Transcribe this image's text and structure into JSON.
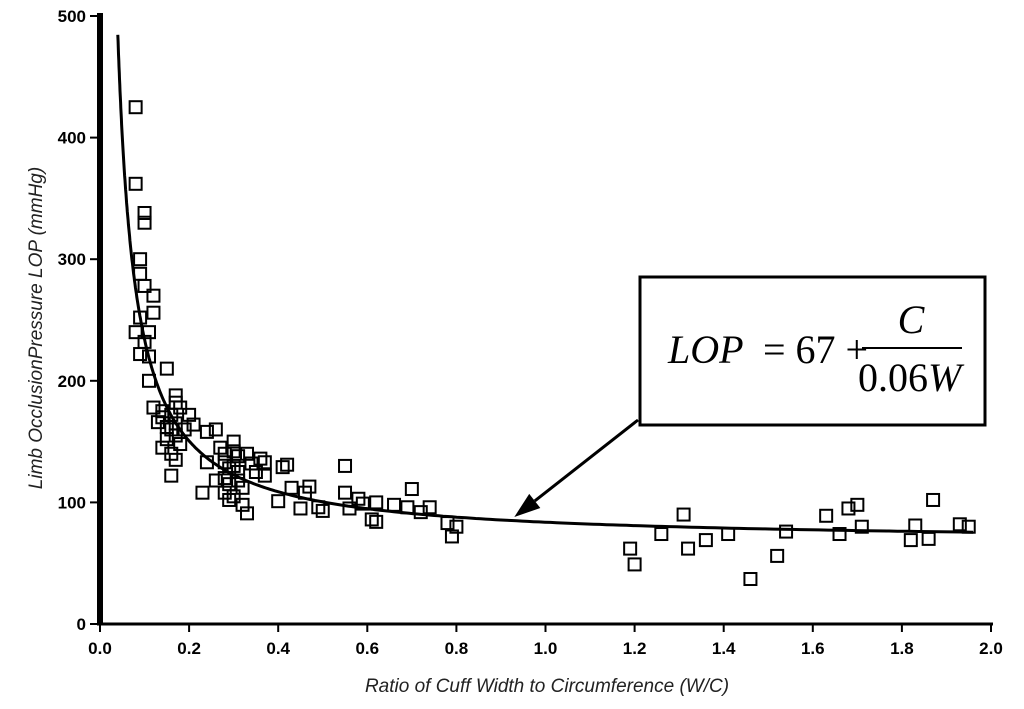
{
  "chart_data": {
    "type": "scatter",
    "title": "",
    "xlabel": "Ratio of Cuff Width to Circumference (W/C)",
    "ylabel": "Limb OcclusionPressure LOP (mmHg)",
    "xlim": [
      0.0,
      2.0
    ],
    "ylim": [
      0,
      500
    ],
    "x_ticks": [
      "0.0",
      "0.2",
      "0.4",
      "0.6",
      "0.8",
      "1.0",
      "1.2",
      "1.4",
      "1.6",
      "1.8",
      "2.0"
    ],
    "y_ticks": [
      "0",
      "100",
      "200",
      "300",
      "400",
      "500"
    ],
    "grid": false,
    "marker": "open-square",
    "points": [
      [
        0.08,
        425
      ],
      [
        0.08,
        362
      ],
      [
        0.1,
        338
      ],
      [
        0.1,
        330
      ],
      [
        0.09,
        300
      ],
      [
        0.09,
        288
      ],
      [
        0.1,
        278
      ],
      [
        0.12,
        270
      ],
      [
        0.12,
        256
      ],
      [
        0.09,
        252
      ],
      [
        0.08,
        240
      ],
      [
        0.11,
        240
      ],
      [
        0.1,
        232
      ],
      [
        0.09,
        222
      ],
      [
        0.11,
        220
      ],
      [
        0.11,
        200
      ],
      [
        0.15,
        210
      ],
      [
        0.12,
        178
      ],
      [
        0.14,
        175
      ],
      [
        0.14,
        170
      ],
      [
        0.13,
        166
      ],
      [
        0.15,
        162
      ],
      [
        0.16,
        160
      ],
      [
        0.15,
        152
      ],
      [
        0.14,
        145
      ],
      [
        0.17,
        188
      ],
      [
        0.17,
        182
      ],
      [
        0.18,
        178
      ],
      [
        0.16,
        172
      ],
      [
        0.17,
        165
      ],
      [
        0.19,
        160
      ],
      [
        0.17,
        155
      ],
      [
        0.18,
        148
      ],
      [
        0.16,
        140
      ],
      [
        0.17,
        135
      ],
      [
        0.16,
        122
      ],
      [
        0.2,
        172
      ],
      [
        0.21,
        164
      ],
      [
        0.24,
        158
      ],
      [
        0.26,
        160
      ],
      [
        0.24,
        133
      ],
      [
        0.23,
        108
      ],
      [
        0.26,
        118
      ],
      [
        0.27,
        145
      ],
      [
        0.28,
        140
      ],
      [
        0.28,
        133
      ],
      [
        0.29,
        128
      ],
      [
        0.28,
        120
      ],
      [
        0.29,
        115
      ],
      [
        0.28,
        108
      ],
      [
        0.29,
        102
      ],
      [
        0.3,
        150
      ],
      [
        0.3,
        142
      ],
      [
        0.31,
        138
      ],
      [
        0.3,
        130
      ],
      [
        0.31,
        125
      ],
      [
        0.31,
        118
      ],
      [
        0.32,
        112
      ],
      [
        0.3,
        105
      ],
      [
        0.32,
        98
      ],
      [
        0.33,
        91
      ],
      [
        0.33,
        140
      ],
      [
        0.34,
        132
      ],
      [
        0.35,
        125
      ],
      [
        0.36,
        136
      ],
      [
        0.37,
        133
      ],
      [
        0.37,
        122
      ],
      [
        0.4,
        101
      ],
      [
        0.41,
        129
      ],
      [
        0.42,
        131
      ],
      [
        0.43,
        112
      ],
      [
        0.45,
        95
      ],
      [
        0.46,
        108
      ],
      [
        0.47,
        113
      ],
      [
        0.49,
        96
      ],
      [
        0.5,
        93
      ],
      [
        0.55,
        130
      ],
      [
        0.55,
        108
      ],
      [
        0.56,
        95
      ],
      [
        0.58,
        103
      ],
      [
        0.59,
        99
      ],
      [
        0.61,
        86
      ],
      [
        0.62,
        100
      ],
      [
        0.62,
        84
      ],
      [
        0.66,
        98
      ],
      [
        0.69,
        96
      ],
      [
        0.7,
        111
      ],
      [
        0.72,
        92
      ],
      [
        0.74,
        96
      ],
      [
        0.78,
        83
      ],
      [
        0.79,
        72
      ],
      [
        0.8,
        80
      ],
      [
        1.19,
        62
      ],
      [
        1.2,
        49
      ],
      [
        1.26,
        74
      ],
      [
        1.31,
        90
      ],
      [
        1.32,
        62
      ],
      [
        1.36,
        69
      ],
      [
        1.41,
        74
      ],
      [
        1.46,
        37
      ],
      [
        1.52,
        56
      ],
      [
        1.54,
        76
      ],
      [
        1.63,
        89
      ],
      [
        1.66,
        74
      ],
      [
        1.68,
        95
      ],
      [
        1.7,
        98
      ],
      [
        1.71,
        80
      ],
      [
        1.82,
        69
      ],
      [
        1.83,
        81
      ],
      [
        1.86,
        70
      ],
      [
        1.87,
        102
      ],
      [
        1.93,
        82
      ],
      [
        1.95,
        80
      ]
    ],
    "fit": {
      "name": "LOP = 67 + C / (0.06W)",
      "x_range": [
        0.04,
        1.96
      ],
      "intercept": 67,
      "coef": 16.7
    },
    "annotation": {
      "text_lhs": "LOP",
      "text_eq": "= 67 +",
      "numerator": "C",
      "denominator": "0.06",
      "denominator_var": "W",
      "arrow_target": [
        0.93,
        88
      ]
    }
  }
}
